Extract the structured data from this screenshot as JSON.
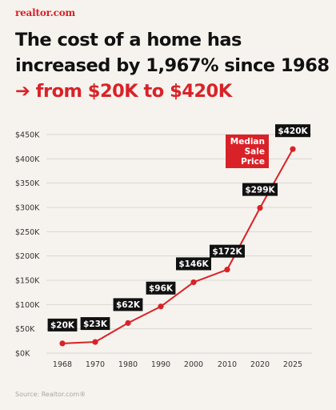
{
  "brand": {
    "logo": "realtor.com"
  },
  "header": {
    "title_line1": "The cost of a home has",
    "title_line2": "increased by 1,967% since 1968",
    "subtitle": "➔ from $20K to $420K"
  },
  "source": "Source: Realtor.com®",
  "colors": {
    "accent": "#d92228",
    "label_bg": "#111111",
    "grid": "#d9d6d1",
    "background": "#f6f3ee"
  },
  "chart_data": {
    "type": "line",
    "x": [
      1968,
      1970,
      1980,
      1990,
      2000,
      2010,
      2020,
      2025
    ],
    "xticks": [
      "1968",
      "1970",
      "1980",
      "1990",
      "2000",
      "2010",
      "2020",
      "2025"
    ],
    "ylim": [
      0,
      450000
    ],
    "yticks": [
      "$0K",
      "$50K",
      "$100K",
      "$150K",
      "$200K",
      "$250K",
      "$300K",
      "$350K",
      "$400K",
      "$450K"
    ],
    "series": [
      {
        "name": "Median Sale Price",
        "values": [
          20000,
          23000,
          62000,
          96000,
          146000,
          172000,
          299000,
          420000
        ],
        "labels": [
          "$20K",
          "$23K",
          "$62K",
          "$96K",
          "$146K",
          "$172K",
          "$299K",
          "$420K"
        ]
      }
    ],
    "annotation": [
      "Median",
      "Sale",
      "Price"
    ],
    "grid": true
  }
}
